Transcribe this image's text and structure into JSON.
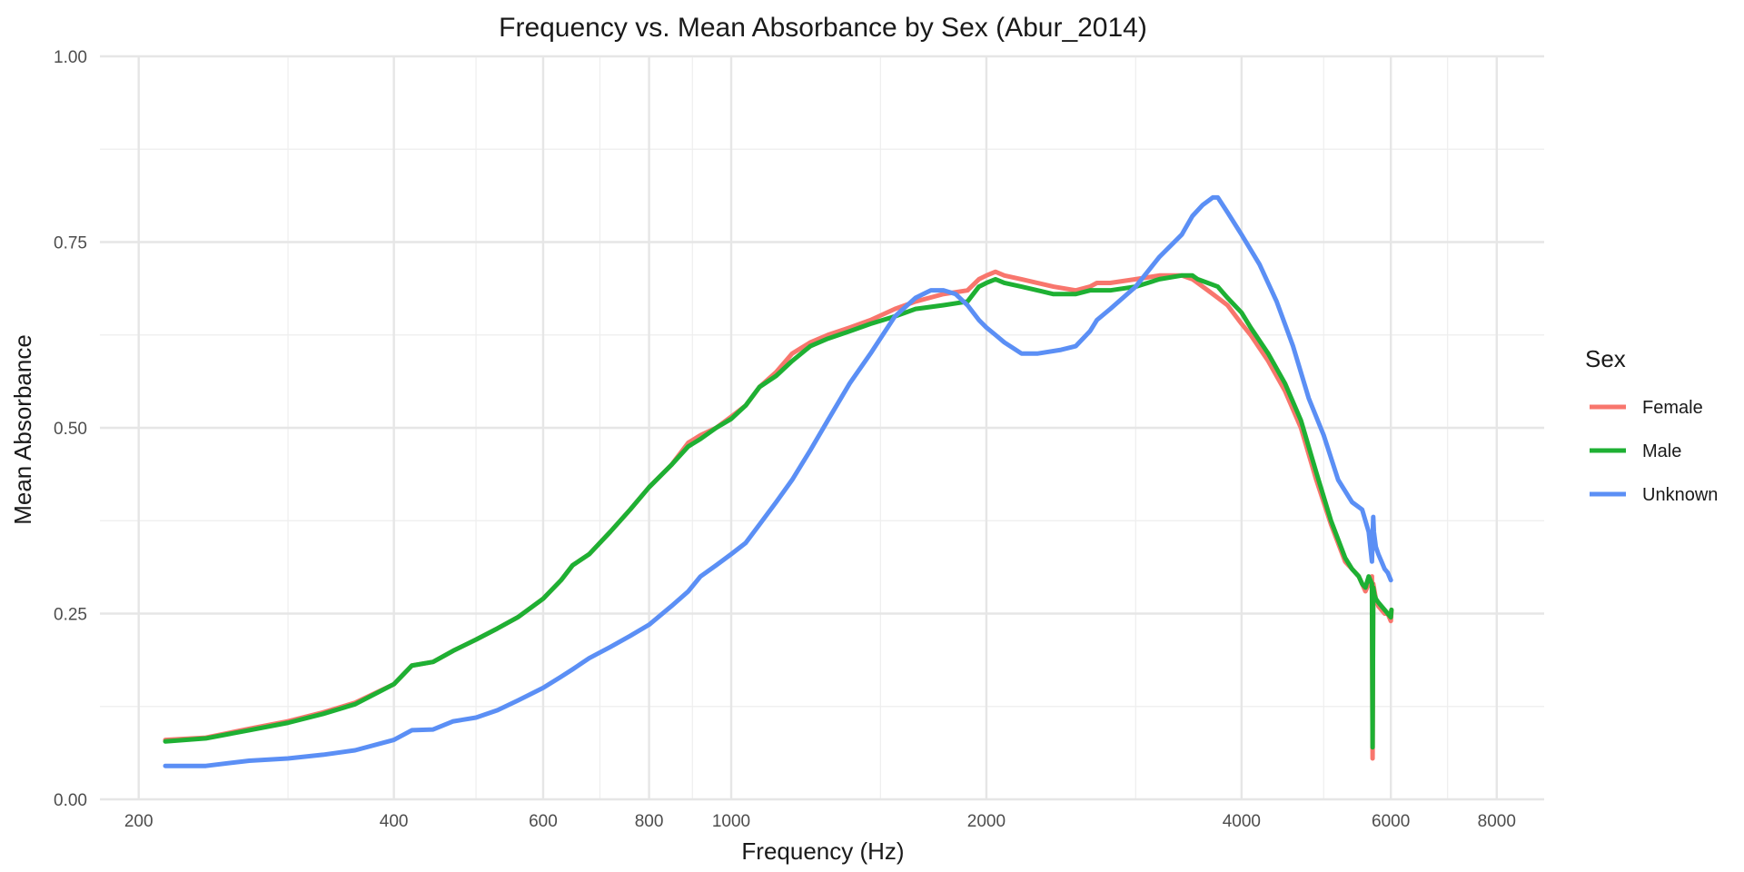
{
  "chart_data": {
    "type": "line",
    "title": "Frequency vs. Mean Absorbance by Sex (Abur_2014)",
    "xlabel": "Frequency (Hz)",
    "ylabel": "Mean Absorbance",
    "x_scale": "log",
    "xlim": [
      180,
      9100
    ],
    "ylim": [
      0,
      1
    ],
    "x_major_ticks": [
      200,
      400,
      600,
      800,
      1000,
      2000,
      4000,
      6000,
      8000
    ],
    "x_minor_ticks": [
      300,
      500,
      700,
      900,
      1500,
      3000,
      5000,
      7000
    ],
    "y_major_ticks": [
      0,
      0.25,
      0.5,
      0.75,
      1
    ],
    "y_minor_ticks": [
      0.125,
      0.375,
      0.625,
      0.875
    ],
    "y_tick_labels": [
      "0.00",
      "0.25",
      "0.50",
      "0.75",
      "1.00"
    ],
    "grid": true,
    "legend": {
      "title": "Sex",
      "placement": "right"
    },
    "series": [
      {
        "name": "Female",
        "color": "#F8766D",
        "x": [
          215,
          240,
          270,
          300,
          330,
          360,
          400,
          420,
          445,
          470,
          500,
          530,
          560,
          600,
          630,
          650,
          680,
          720,
          760,
          800,
          850,
          890,
          920,
          960,
          1000,
          1040,
          1080,
          1130,
          1180,
          1240,
          1300,
          1380,
          1460,
          1560,
          1650,
          1780,
          1900,
          1960,
          2000,
          2050,
          2100,
          2200,
          2400,
          2550,
          2650,
          2700,
          2800,
          3000,
          3200,
          3400,
          3500,
          3550,
          3650,
          3750,
          3850,
          4000,
          4100,
          4300,
          4500,
          4700,
          4900,
          5100,
          5300,
          5400,
          5500,
          5550,
          5600,
          5650,
          5700,
          5710,
          5720,
          5730,
          5740,
          5760,
          5800,
          5850,
          5900,
          5950,
          6000,
          6010
        ],
        "values": [
          0.08,
          0.083,
          0.095,
          0.105,
          0.117,
          0.13,
          0.155,
          0.18,
          0.185,
          0.2,
          0.215,
          0.23,
          0.245,
          0.27,
          0.295,
          0.315,
          0.33,
          0.36,
          0.39,
          0.42,
          0.45,
          0.48,
          0.49,
          0.5,
          0.515,
          0.53,
          0.555,
          0.575,
          0.6,
          0.615,
          0.625,
          0.635,
          0.645,
          0.66,
          0.67,
          0.68,
          0.685,
          0.7,
          0.705,
          0.71,
          0.705,
          0.7,
          0.69,
          0.685,
          0.69,
          0.695,
          0.695,
          0.7,
          0.705,
          0.705,
          0.7,
          0.695,
          0.685,
          0.675,
          0.665,
          0.64,
          0.625,
          0.59,
          0.55,
          0.5,
          0.43,
          0.37,
          0.32,
          0.31,
          0.3,
          0.29,
          0.28,
          0.29,
          0.3,
          0.055,
          0.29,
          0.285,
          0.28,
          0.27,
          0.26,
          0.255,
          0.25,
          0.25,
          0.24,
          0.255
        ]
      },
      {
        "name": "Male",
        "color": "#1EB033",
        "x": [
          215,
          240,
          270,
          300,
          330,
          360,
          400,
          420,
          445,
          470,
          500,
          530,
          560,
          600,
          630,
          650,
          680,
          720,
          760,
          800,
          850,
          890,
          920,
          960,
          1000,
          1040,
          1080,
          1130,
          1180,
          1240,
          1300,
          1380,
          1460,
          1560,
          1650,
          1780,
          1900,
          1960,
          2000,
          2050,
          2100,
          2200,
          2400,
          2550,
          2650,
          2700,
          2800,
          3000,
          3200,
          3400,
          3500,
          3550,
          3650,
          3750,
          3850,
          4000,
          4100,
          4300,
          4500,
          4700,
          4900,
          5100,
          5300,
          5400,
          5500,
          5550,
          5600,
          5650,
          5700,
          5710,
          5720,
          5730,
          5740,
          5760,
          5800,
          5850,
          5900,
          5950,
          6000,
          6010
        ],
        "values": [
          0.078,
          0.082,
          0.093,
          0.103,
          0.115,
          0.128,
          0.155,
          0.18,
          0.185,
          0.2,
          0.215,
          0.23,
          0.245,
          0.27,
          0.295,
          0.315,
          0.33,
          0.36,
          0.39,
          0.42,
          0.45,
          0.475,
          0.485,
          0.5,
          0.512,
          0.53,
          0.555,
          0.57,
          0.59,
          0.61,
          0.62,
          0.63,
          0.64,
          0.65,
          0.66,
          0.665,
          0.67,
          0.69,
          0.695,
          0.7,
          0.695,
          0.69,
          0.68,
          0.68,
          0.685,
          0.685,
          0.685,
          0.69,
          0.7,
          0.705,
          0.705,
          0.7,
          0.695,
          0.69,
          0.675,
          0.655,
          0.635,
          0.6,
          0.56,
          0.51,
          0.44,
          0.375,
          0.325,
          0.31,
          0.3,
          0.29,
          0.285,
          0.3,
          0.29,
          0.07,
          0.285,
          0.28,
          0.275,
          0.27,
          0.265,
          0.26,
          0.255,
          0.25,
          0.245,
          0.255
        ]
      },
      {
        "name": "Unknown",
        "color": "#5B8FF5",
        "x": [
          215,
          240,
          270,
          300,
          330,
          360,
          400,
          420,
          445,
          470,
          500,
          530,
          560,
          600,
          630,
          650,
          680,
          720,
          760,
          800,
          850,
          890,
          920,
          960,
          1000,
          1040,
          1080,
          1130,
          1180,
          1240,
          1300,
          1380,
          1460,
          1560,
          1650,
          1720,
          1780,
          1840,
          1900,
          1960,
          2000,
          2050,
          2100,
          2200,
          2300,
          2450,
          2550,
          2650,
          2700,
          2800,
          3000,
          3200,
          3400,
          3500,
          3600,
          3700,
          3750,
          3850,
          4000,
          4200,
          4400,
          4600,
          4800,
          5000,
          5200,
          5400,
          5550,
          5650,
          5700,
          5720,
          5730,
          5760,
          5800,
          5850,
          5900,
          5950,
          6000
        ],
        "values": [
          0.045,
          0.045,
          0.052,
          0.055,
          0.06,
          0.066,
          0.08,
          0.093,
          0.094,
          0.105,
          0.11,
          0.12,
          0.133,
          0.15,
          0.165,
          0.175,
          0.19,
          0.205,
          0.22,
          0.235,
          0.26,
          0.28,
          0.3,
          0.315,
          0.33,
          0.345,
          0.37,
          0.4,
          0.43,
          0.47,
          0.51,
          0.56,
          0.6,
          0.65,
          0.675,
          0.685,
          0.685,
          0.68,
          0.665,
          0.645,
          0.635,
          0.625,
          0.615,
          0.6,
          0.6,
          0.605,
          0.61,
          0.63,
          0.645,
          0.66,
          0.69,
          0.73,
          0.76,
          0.785,
          0.8,
          0.81,
          0.81,
          0.79,
          0.76,
          0.72,
          0.67,
          0.61,
          0.54,
          0.49,
          0.43,
          0.4,
          0.39,
          0.36,
          0.32,
          0.38,
          0.36,
          0.34,
          0.33,
          0.32,
          0.31,
          0.305,
          0.295
        ]
      }
    ]
  }
}
